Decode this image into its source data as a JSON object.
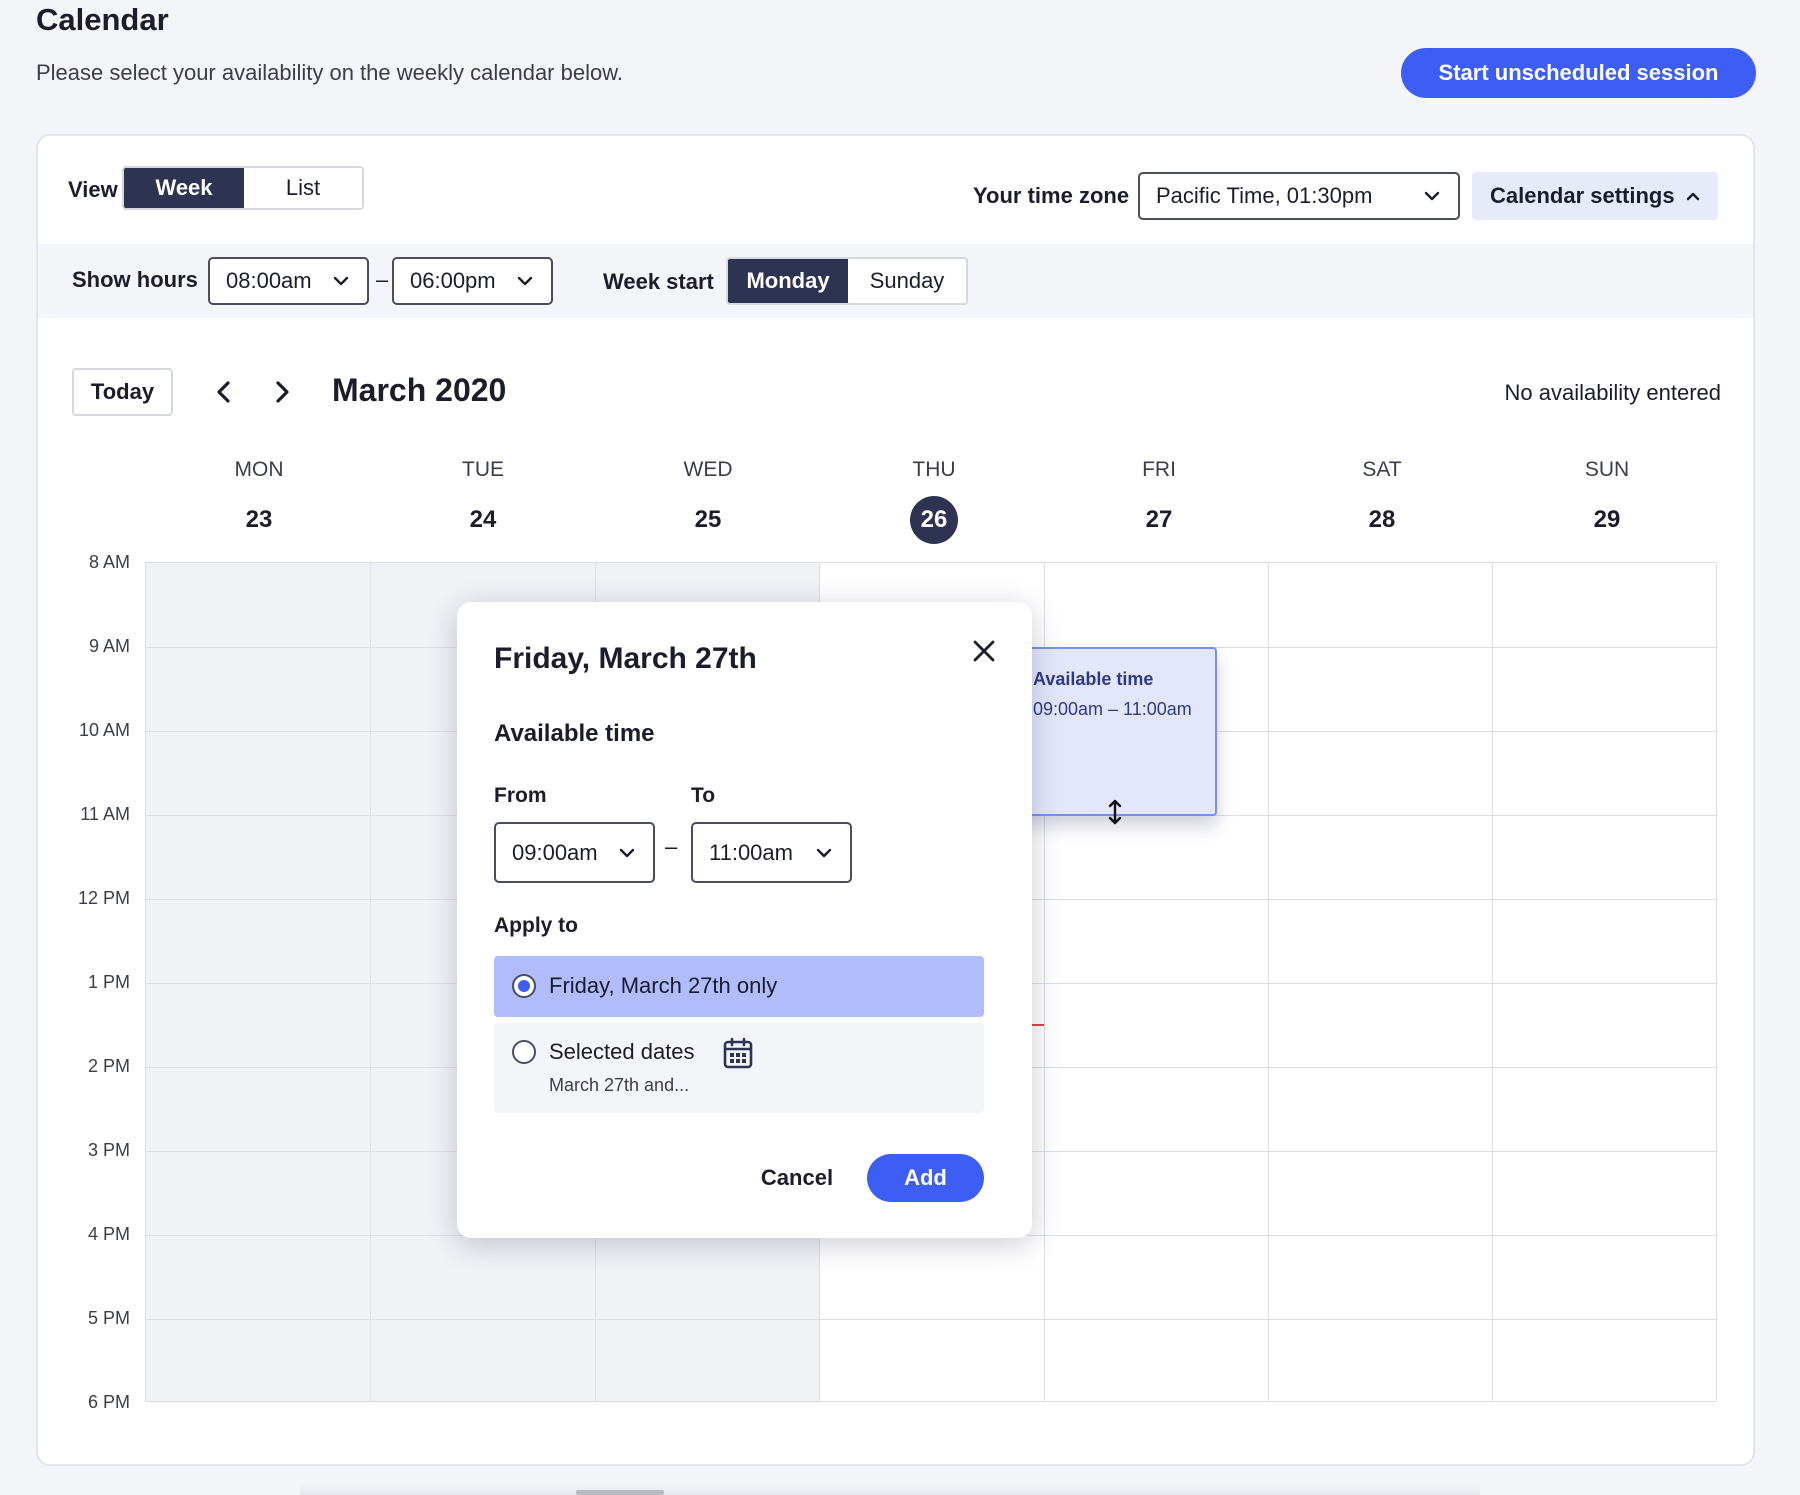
{
  "page": {
    "title": "Calendar",
    "subtitle": "Please select your availability on the weekly calendar below.",
    "start_session_label": "Start unscheduled session"
  },
  "toolbar": {
    "view_label": "View",
    "view_options": [
      "Week",
      "List"
    ],
    "view_selected": "Week",
    "timezone_label": "Your time zone",
    "timezone_value": "Pacific Time, 01:30pm",
    "settings_label": "Calendar settings"
  },
  "settings": {
    "show_hours_label": "Show hours",
    "hours_from": "08:00am",
    "hours_to": "06:00pm",
    "dash": "–",
    "week_start_label": "Week start",
    "week_start_options": [
      "Monday",
      "Sunday"
    ],
    "week_start_selected": "Monday"
  },
  "nav": {
    "today_label": "Today",
    "month_title": "March 2020",
    "status": "No availability entered"
  },
  "days": [
    {
      "name": "MON",
      "num": "23"
    },
    {
      "name": "TUE",
      "num": "24"
    },
    {
      "name": "WED",
      "num": "25"
    },
    {
      "name": "THU",
      "num": "26",
      "today": true
    },
    {
      "name": "FRI",
      "num": "27"
    },
    {
      "name": "SAT",
      "num": "28"
    },
    {
      "name": "SUN",
      "num": "29"
    }
  ],
  "hours": [
    "8 AM",
    "9 AM",
    "10 AM",
    "11 AM",
    "12 PM",
    "1 PM",
    "2 PM",
    "3 PM",
    "4 PM",
    "5 PM",
    "6 PM"
  ],
  "event": {
    "title": "Available time",
    "time": "09:00am – 11:00am"
  },
  "popup": {
    "title": "Friday, March 27th",
    "section_title": "Available time",
    "from_label": "From",
    "to_label": "To",
    "from_value": "09:00am",
    "to_value": "11:00am",
    "dash": "–",
    "apply_label": "Apply to",
    "option1": "Friday, March 27th only",
    "option2": "Selected dates",
    "option2_sub": "March 27th and...",
    "cancel_label": "Cancel",
    "add_label": "Add"
  },
  "colors": {
    "accent": "#3d5ef5",
    "dark": "#2e3352",
    "event_bg": "#e4e7fb",
    "now_line": "#e0473f"
  }
}
